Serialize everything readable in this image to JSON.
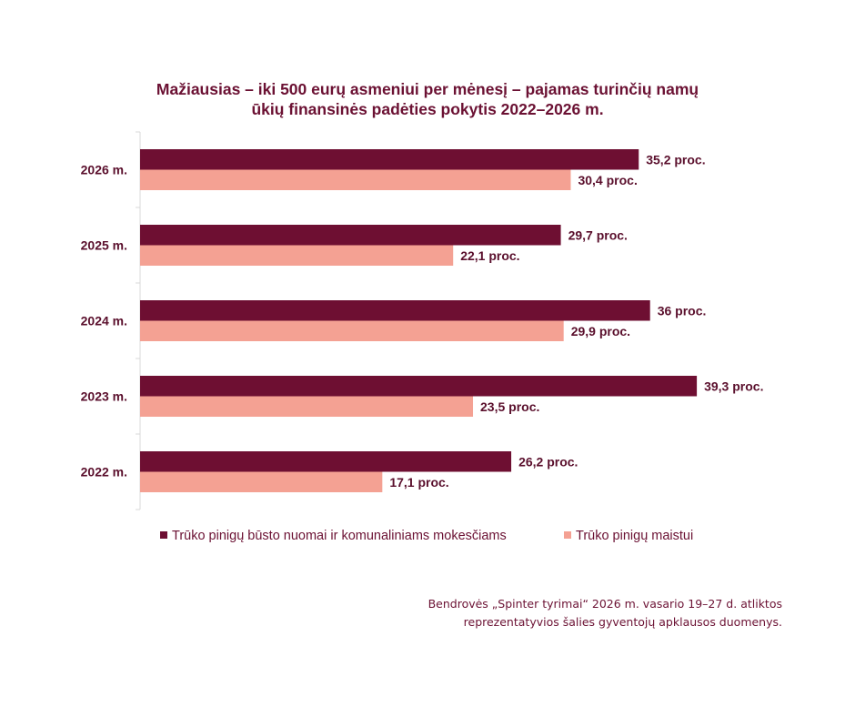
{
  "chart_data": {
    "type": "bar",
    "orientation": "horizontal",
    "title": [
      "Mažiausias – iki 500 eurų asmeniui per mėnesį – pajamas turinčių namų",
      "ūkių finansinės padėties pokytis 2022–2026 m."
    ],
    "categories": [
      "2026 m.",
      "2025 m.",
      "2024 m.",
      "2023 m.",
      "2022 m."
    ],
    "series": [
      {
        "name": "Trūko pinigų būsto nuomai ir komunaliniams mokesčiams",
        "color": "#6e0f32",
        "values": [
          35.2,
          29.7,
          36,
          39.3,
          26.2
        ],
        "labels": [
          "35,2 proc.",
          "29,7 proc.",
          "36 proc.",
          "39,3 proc.",
          "26,2 proc."
        ]
      },
      {
        "name": "Trūko pinigų maistui",
        "color": "#f4a193",
        "values": [
          30.4,
          22.1,
          29.9,
          23.5,
          17.1
        ],
        "labels": [
          "30,4 proc.",
          "22,1 proc.",
          "29,9 proc.",
          "23,5 proc.",
          "17,1 proc."
        ]
      }
    ],
    "xlim": [
      0,
      40
    ],
    "grid": false,
    "legend_position": "bottom",
    "xlabel": "",
    "ylabel": ""
  },
  "source_note": [
    "Bendrovės „Spinter tyrimai“ 2026 m. vasario 19–27 d. atliktos",
    "reprezentatyvios šalies gyventojų apklausos duomenys."
  ]
}
